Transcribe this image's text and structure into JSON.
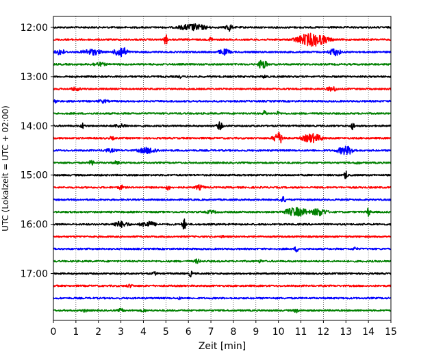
{
  "chart_data": {
    "type": "line",
    "xlabel": "Zeit  [min]",
    "ylabel": "UTC (Lokalzeit = UTC + 02:00)",
    "xlim": [
      0,
      15
    ],
    "x_ticks": [
      0,
      1,
      2,
      3,
      4,
      5,
      6,
      7,
      8,
      9,
      10,
      11,
      12,
      13,
      14,
      15
    ],
    "y_tick_labels": [
      "12:00",
      "13:00",
      "14:00",
      "15:00",
      "16:00",
      "17:00"
    ],
    "trace_interval_min": 15,
    "grid": "vertical dotted at each minute",
    "traces": [
      {
        "start": "12:00",
        "color": "#000000",
        "events": [
          [
            6.2,
            0.55,
            1.4
          ],
          [
            7.8,
            0.7,
            0.3
          ]
        ]
      },
      {
        "start": "12:15",
        "color": "#ff0000",
        "events": [
          [
            5.0,
            0.9,
            0.15
          ],
          [
            7.0,
            0.6,
            0.15
          ],
          [
            11.5,
            1.0,
            1.5
          ]
        ]
      },
      {
        "start": "12:30",
        "color": "#0000ff",
        "events": [
          [
            0.3,
            0.5,
            0.5
          ],
          [
            1.7,
            0.5,
            1.0
          ],
          [
            3.0,
            0.9,
            0.6
          ],
          [
            7.6,
            0.5,
            0.6
          ],
          [
            12.5,
            0.6,
            0.6
          ]
        ]
      },
      {
        "start": "12:45",
        "color": "#008000",
        "events": [
          [
            2.0,
            0.35,
            0.8
          ],
          [
            9.3,
            0.8,
            0.4
          ]
        ]
      },
      {
        "start": "13:00",
        "color": "#000000",
        "events": [
          [
            5.6,
            0.3,
            0.2
          ],
          [
            9.4,
            0.3,
            0.3
          ]
        ]
      },
      {
        "start": "13:15",
        "color": "#ff0000",
        "events": [
          [
            1.0,
            0.3,
            0.6
          ],
          [
            12.4,
            0.4,
            0.6
          ]
        ]
      },
      {
        "start": "13:30",
        "color": "#0000ff",
        "events": [
          [
            0.1,
            0.3,
            0.3
          ],
          [
            2.2,
            0.3,
            0.6
          ]
        ]
      },
      {
        "start": "13:45",
        "color": "#008000",
        "events": [
          [
            9.4,
            0.5,
            0.2
          ],
          [
            10.0,
            0.4,
            0.2
          ]
        ]
      },
      {
        "start": "14:00",
        "color": "#000000",
        "events": [
          [
            1.3,
            0.5,
            0.2
          ],
          [
            3.0,
            0.3,
            1.0
          ],
          [
            7.4,
            0.6,
            0.3
          ],
          [
            13.3,
            0.6,
            0.2
          ]
        ]
      },
      {
        "start": "14:15",
        "color": "#ff0000",
        "events": [
          [
            10.0,
            0.9,
            0.5
          ],
          [
            11.5,
            0.7,
            1.0
          ],
          [
            2.6,
            0.3,
            0.3
          ]
        ]
      },
      {
        "start": "14:30",
        "color": "#0000ff",
        "events": [
          [
            2.5,
            0.3,
            0.8
          ],
          [
            4.2,
            0.5,
            1.0
          ],
          [
            13.0,
            0.7,
            0.8
          ]
        ]
      },
      {
        "start": "14:45",
        "color": "#008000",
        "events": [
          [
            1.7,
            0.6,
            0.2
          ],
          [
            2.8,
            0.3,
            0.4
          ],
          [
            13.5,
            0.3,
            0.3
          ]
        ]
      },
      {
        "start": "15:00",
        "color": "#000000",
        "events": [
          [
            13.0,
            0.8,
            0.15
          ]
        ]
      },
      {
        "start": "15:15",
        "color": "#ff0000",
        "events": [
          [
            3.0,
            0.4,
            0.3
          ],
          [
            5.1,
            0.5,
            0.2
          ],
          [
            6.5,
            0.4,
            0.5
          ]
        ]
      },
      {
        "start": "15:30",
        "color": "#0000ff",
        "events": [
          [
            10.2,
            0.5,
            0.3
          ]
        ]
      },
      {
        "start": "15:45",
        "color": "#008000",
        "events": [
          [
            7.0,
            0.3,
            0.6
          ],
          [
            10.8,
            0.7,
            1.2
          ],
          [
            11.8,
            0.6,
            0.8
          ],
          [
            14.0,
            0.7,
            0.2
          ]
        ]
      },
      {
        "start": "16:00",
        "color": "#000000",
        "events": [
          [
            3.0,
            0.5,
            0.8
          ],
          [
            4.2,
            0.5,
            0.8
          ],
          [
            5.8,
            0.9,
            0.2
          ]
        ]
      },
      {
        "start": "16:15",
        "color": "#ff0000",
        "events": [
          [
            7.5,
            0.2,
            0.4
          ]
        ]
      },
      {
        "start": "16:30",
        "color": "#0000ff",
        "events": [
          [
            10.8,
            0.5,
            0.2
          ],
          [
            13.4,
            0.3,
            0.3
          ]
        ]
      },
      {
        "start": "16:45",
        "color": "#008000",
        "events": [
          [
            6.4,
            0.4,
            0.3
          ],
          [
            9.2,
            0.3,
            0.2
          ]
        ]
      },
      {
        "start": "17:00",
        "color": "#000000",
        "events": [
          [
            4.5,
            0.3,
            0.3
          ],
          [
            6.1,
            0.5,
            0.2
          ]
        ]
      },
      {
        "start": "17:15",
        "color": "#ff0000",
        "events": [
          [
            3.4,
            0.3,
            0.4
          ]
        ]
      },
      {
        "start": "17:30",
        "color": "#0000ff",
        "events": [
          [
            5.6,
            0.25,
            0.2
          ]
        ]
      },
      {
        "start": "17:45",
        "color": "#008000",
        "events": [
          [
            1.4,
            0.3,
            0.3
          ],
          [
            3.0,
            0.35,
            0.3
          ],
          [
            4.0,
            0.3,
            0.3
          ],
          [
            10.8,
            0.35,
            0.3
          ]
        ]
      }
    ]
  }
}
